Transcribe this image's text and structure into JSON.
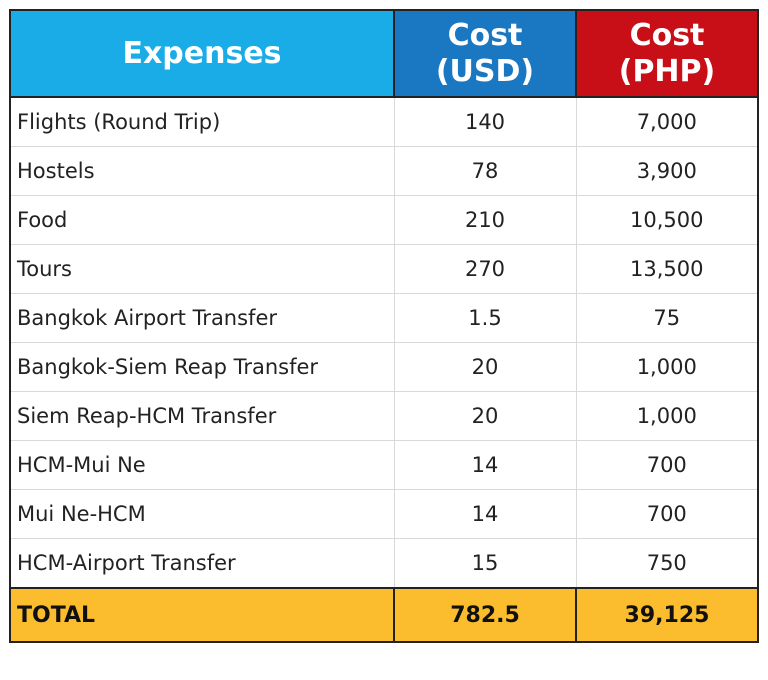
{
  "header": {
    "expenses": "Expenses",
    "usd_line1": "Cost",
    "usd_line2": "(USD)",
    "php_line1": "Cost",
    "php_line2": "(PHP)"
  },
  "rows": [
    {
      "label": "Flights (Round Trip)",
      "usd": "140",
      "php": "7,000"
    },
    {
      "label": "Hostels",
      "usd": "78",
      "php": "3,900"
    },
    {
      "label": "Food",
      "usd": "210",
      "php": "10,500"
    },
    {
      "label": "Tours",
      "usd": "270",
      "php": "13,500"
    },
    {
      "label": "Bangkok Airport Transfer",
      "usd": "1.5",
      "php": "75"
    },
    {
      "label": "Bangkok-Siem Reap Transfer",
      "usd": "20",
      "php": "1,000"
    },
    {
      "label": "Siem Reap-HCM Transfer",
      "usd": "20",
      "php": "1,000"
    },
    {
      "label": "HCM-Mui Ne",
      "usd": "14",
      "php": "700"
    },
    {
      "label": "Mui Ne-HCM",
      "usd": "14",
      "php": "700"
    },
    {
      "label": "HCM-Airport Transfer",
      "usd": "15",
      "php": "750"
    }
  ],
  "total": {
    "label": "TOTAL",
    "usd": "782.5",
    "php": "39,125"
  },
  "colors": {
    "expenses_header": "#1aace7",
    "usd_header": "#1a78c2",
    "php_header": "#c80f17",
    "total_row": "#fbbd2e"
  }
}
